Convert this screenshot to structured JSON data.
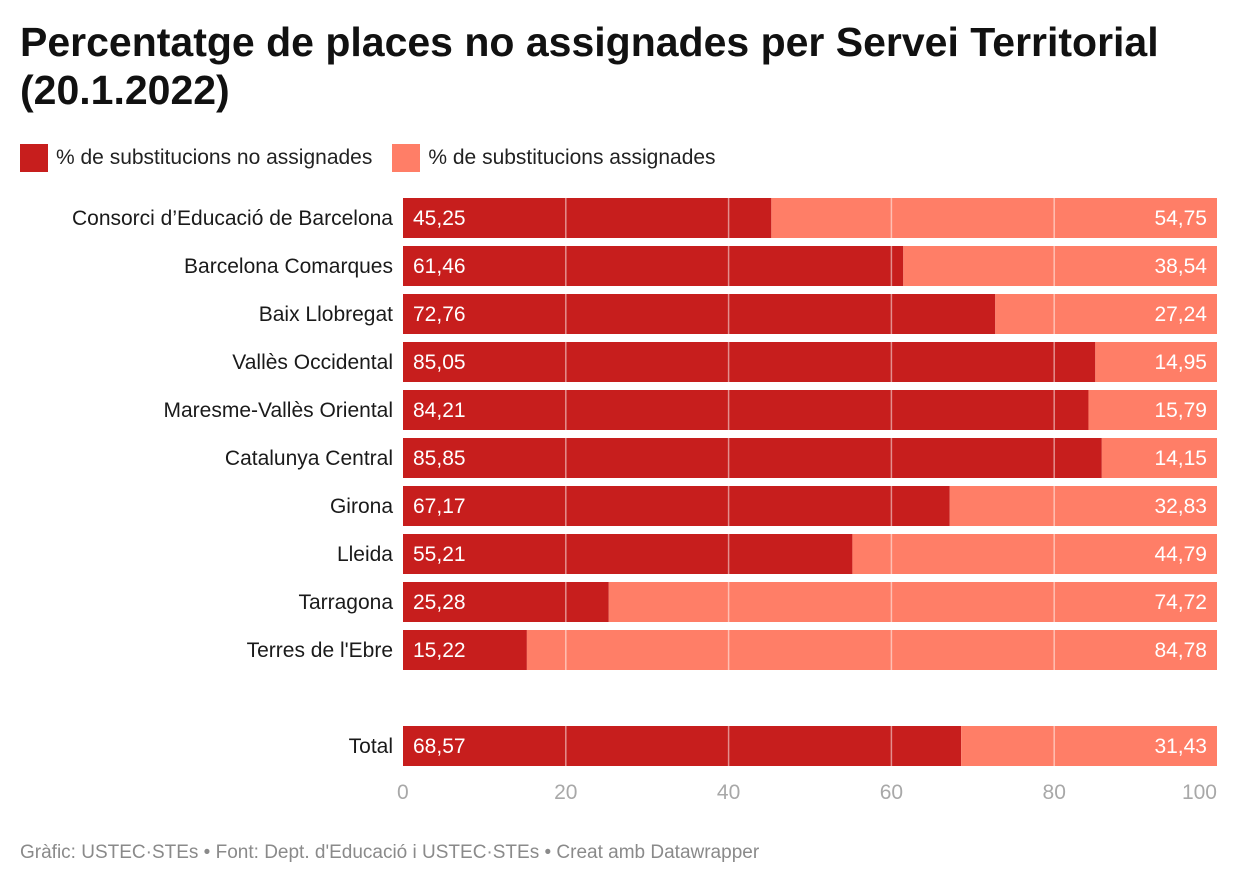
{
  "title": "Percentatge de places no assignades per Servei Territorial (20.1.2022)",
  "legend": [
    {
      "label": "% de substitucions no assignades",
      "color": "#c71e1d"
    },
    {
      "label": "% de substitucions assignades",
      "color": "#ff7e67"
    }
  ],
  "footer": "Gràfic: USTEC·STEs • Font: Dept. d'Educació i USTEC·STEs • Creat amb Datawrapper",
  "chart_data": {
    "type": "bar",
    "orientation": "horizontal",
    "stacked": true,
    "categories": [
      "Consorci d’Educació de Barcelona",
      "Barcelona Comarques",
      "Baix Llobregat",
      "Vallès Occidental",
      "Maresme-Vallès Oriental",
      "Catalunya Central",
      "Girona",
      "Lleida",
      "Tarragona",
      "Terres de l'Ebre",
      "Total"
    ],
    "series": [
      {
        "name": "% de substitucions no assignades",
        "color": "#c71e1d",
        "values": [
          45.25,
          61.46,
          72.76,
          85.05,
          84.21,
          85.85,
          67.17,
          55.21,
          25.28,
          15.22,
          68.57
        ],
        "labels": [
          "45,25",
          "61,46",
          "72,76",
          "85,05",
          "84,21",
          "85,85",
          "67,17",
          "55,21",
          "25,28",
          "15,22",
          "68,57"
        ]
      },
      {
        "name": "% de substitucions assignades",
        "color": "#ff7e67",
        "values": [
          54.75,
          38.54,
          27.24,
          14.95,
          15.79,
          14.15,
          32.83,
          44.79,
          74.72,
          84.78,
          31.43
        ],
        "labels": [
          "54,75",
          "38,54",
          "27,24",
          "14,95",
          "15,79",
          "14,15",
          "32,83",
          "44,79",
          "74,72",
          "84,78",
          "31,43"
        ]
      }
    ],
    "xlim": [
      0,
      100
    ],
    "xticks": [
      0,
      20,
      40,
      60,
      80,
      100
    ],
    "grid": true,
    "legend_position": "top-left"
  }
}
